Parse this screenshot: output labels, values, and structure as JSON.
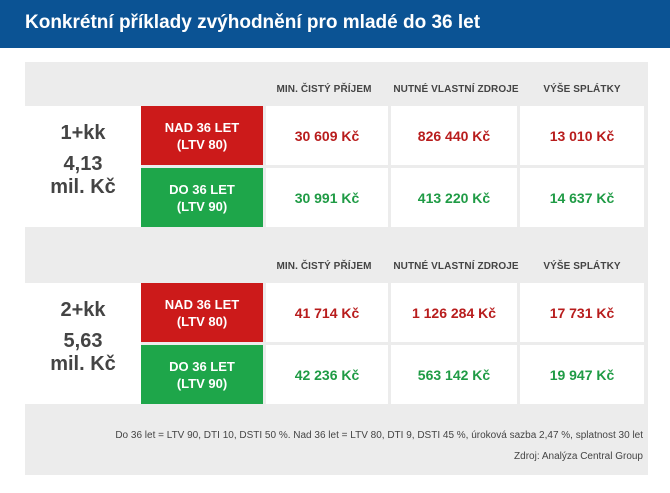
{
  "title": "Konkrétní příklady zvýhodnění pro mladé do 36 let",
  "columns": [
    "MIN. ČISTÝ PŘÍJEM",
    "NUTNÉ VLASTNÍ ZDROJE",
    "VÝŠE SPLÁTKY"
  ],
  "blocks": [
    {
      "apartment": "1+kk",
      "price_line1": "4,13",
      "price_line2": "mil. Kč",
      "rows": [
        {
          "status_line1": "NAD 36 LET",
          "status_line2": "(LTV 80)",
          "values": [
            "30 609 Kč",
            "826 440 Kč",
            "13 010 Kč"
          ]
        },
        {
          "status_line1": "DO 36 LET",
          "status_line2": "(LTV 90)",
          "values": [
            "30 991 Kč",
            "413 220 Kč",
            "14 637 Kč"
          ]
        }
      ]
    },
    {
      "apartment": "2+kk",
      "price_line1": "5,63",
      "price_line2": "mil. Kč",
      "rows": [
        {
          "status_line1": "NAD 36 LET",
          "status_line2": "(LTV 80)",
          "values": [
            "41 714 Kč",
            "1 126 284 Kč",
            "17 731 Kč"
          ]
        },
        {
          "status_line1": "DO 36 LET",
          "status_line2": "(LTV 90)",
          "values": [
            "42 236 Kč",
            "563 142 Kč",
            "19 947 Kč"
          ]
        }
      ]
    }
  ],
  "footnote": "Do 36 let = LTV 90, DTI 10, DSTI 50 %. Nad 36 let = LTV 80, DTI 9, DSTI 45 %, úroková sazba 2,47 %, splatnost 30 let",
  "source": "Zdroj: Analýza Central Group",
  "colors": {
    "header": "#0b5394",
    "red": "#cc1a1a",
    "green": "#1ea64a",
    "panel": "#ececec"
  }
}
